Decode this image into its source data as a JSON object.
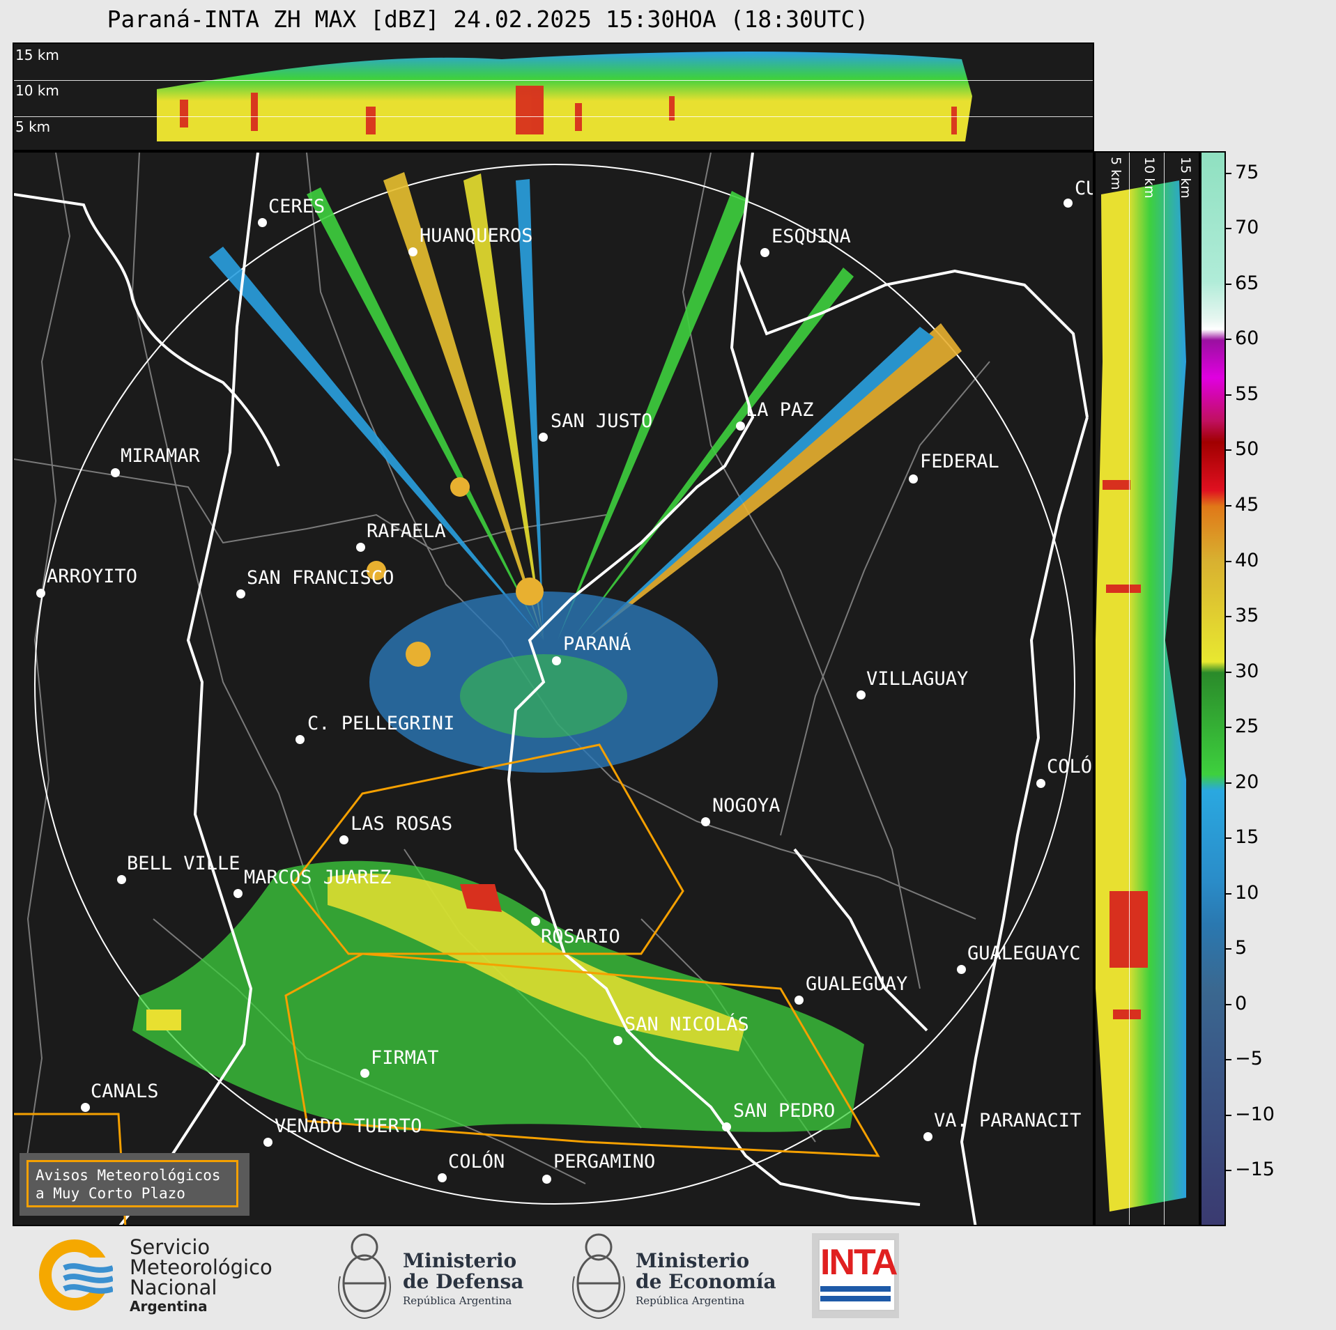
{
  "title": "Paraná-INTA ZH MAX [dBZ] 24.02.2025 15:30HOA (18:30UTC)",
  "height_labels": [
    "15 km",
    "10 km",
    "5 km"
  ],
  "colorbar": {
    "unit": "dBZ",
    "ticks": [
      "75",
      "70",
      "65",
      "60",
      "55",
      "50",
      "45",
      "40",
      "35",
      "30",
      "25",
      "20",
      "15",
      "10",
      "5",
      "0",
      "−5",
      "−10",
      "−15"
    ],
    "range": [
      -20,
      77
    ]
  },
  "cities": [
    {
      "name": "CERES"
    },
    {
      "name": "HUANQUEROS"
    },
    {
      "name": "ESQUINA"
    },
    {
      "name": "CU"
    },
    {
      "name": "SAN JUSTO"
    },
    {
      "name": "LA PAZ"
    },
    {
      "name": "MIRAMAR"
    },
    {
      "name": "FEDERAL"
    },
    {
      "name": "RAFAELA"
    },
    {
      "name": "ARROYITO"
    },
    {
      "name": "SAN FRANCISCO"
    },
    {
      "name": "PARANÁ"
    },
    {
      "name": "VILLAGUAY"
    },
    {
      "name": "C. PELLEGRINI"
    },
    {
      "name": "COLÓ"
    },
    {
      "name": "NOGOYA"
    },
    {
      "name": "LAS ROSAS"
    },
    {
      "name": "BELL VILLE"
    },
    {
      "name": "MARCOS JUAREZ"
    },
    {
      "name": "ROSARIO"
    },
    {
      "name": "GUALEGUAYC"
    },
    {
      "name": "GUALEGUAY"
    },
    {
      "name": "SAN NICOLÁS"
    },
    {
      "name": "FIRMAT"
    },
    {
      "name": "CANALS"
    },
    {
      "name": "SAN PEDRO"
    },
    {
      "name": "VENADO TUERTO"
    },
    {
      "name": "VA. PARANACIT"
    },
    {
      "name": "COLÓN"
    },
    {
      "name": "PERGAMINO"
    }
  ],
  "warning_box": {
    "line1": "Avisos Meteorológicos",
    "line2": "a Muy Corto Plazo"
  },
  "logos": {
    "smn": {
      "line1": "Servicio",
      "line2": "Meteorológico",
      "line3": "Nacional",
      "line4": "Argentina"
    },
    "defensa": {
      "line1": "Ministerio",
      "line2": "de Defensa",
      "line3": "República Argentina"
    },
    "economia": {
      "line1": "Ministerio",
      "line2": "de Economía",
      "line3": "República Argentina"
    },
    "inta": {
      "text": "INTA"
    }
  },
  "colors": {
    "background": "#1b1b1b",
    "warning": "#f5a000",
    "borders": "#ffffff",
    "provinces": "#7a7a7a"
  }
}
